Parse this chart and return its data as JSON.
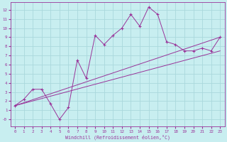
{
  "xlabel": "Windchill (Refroidissement éolien,°C)",
  "bg_color": "#c8eef0",
  "grid_color": "#aad8dc",
  "line_color": "#993399",
  "xlim": [
    -0.5,
    23.5
  ],
  "ylim": [
    -0.8,
    12.8
  ],
  "xticks": [
    0,
    1,
    2,
    3,
    4,
    5,
    6,
    7,
    8,
    9,
    10,
    11,
    12,
    13,
    14,
    15,
    16,
    17,
    18,
    19,
    20,
    21,
    22,
    23
  ],
  "yticks": [
    0,
    1,
    2,
    3,
    4,
    5,
    6,
    7,
    8,
    9,
    10,
    11,
    12
  ],
  "main_x": [
    0,
    1,
    2,
    3,
    4,
    5,
    6,
    7,
    8,
    9,
    10,
    11,
    12,
    13,
    14,
    15,
    16,
    17,
    18,
    19,
    20,
    21,
    22,
    23
  ],
  "main_y": [
    1.5,
    2.2,
    3.3,
    3.3,
    1.7,
    0.0,
    1.3,
    6.5,
    4.5,
    9.2,
    8.2,
    9.2,
    10.0,
    11.5,
    10.2,
    12.3,
    11.5,
    8.5,
    8.2,
    7.5,
    7.5,
    7.8,
    7.5,
    9.0
  ],
  "line1_x": [
    0,
    23
  ],
  "line1_y": [
    1.5,
    9.0
  ],
  "line2_x": [
    0,
    23
  ],
  "line2_y": [
    1.5,
    7.5
  ],
  "yticklabel_0": "-0"
}
